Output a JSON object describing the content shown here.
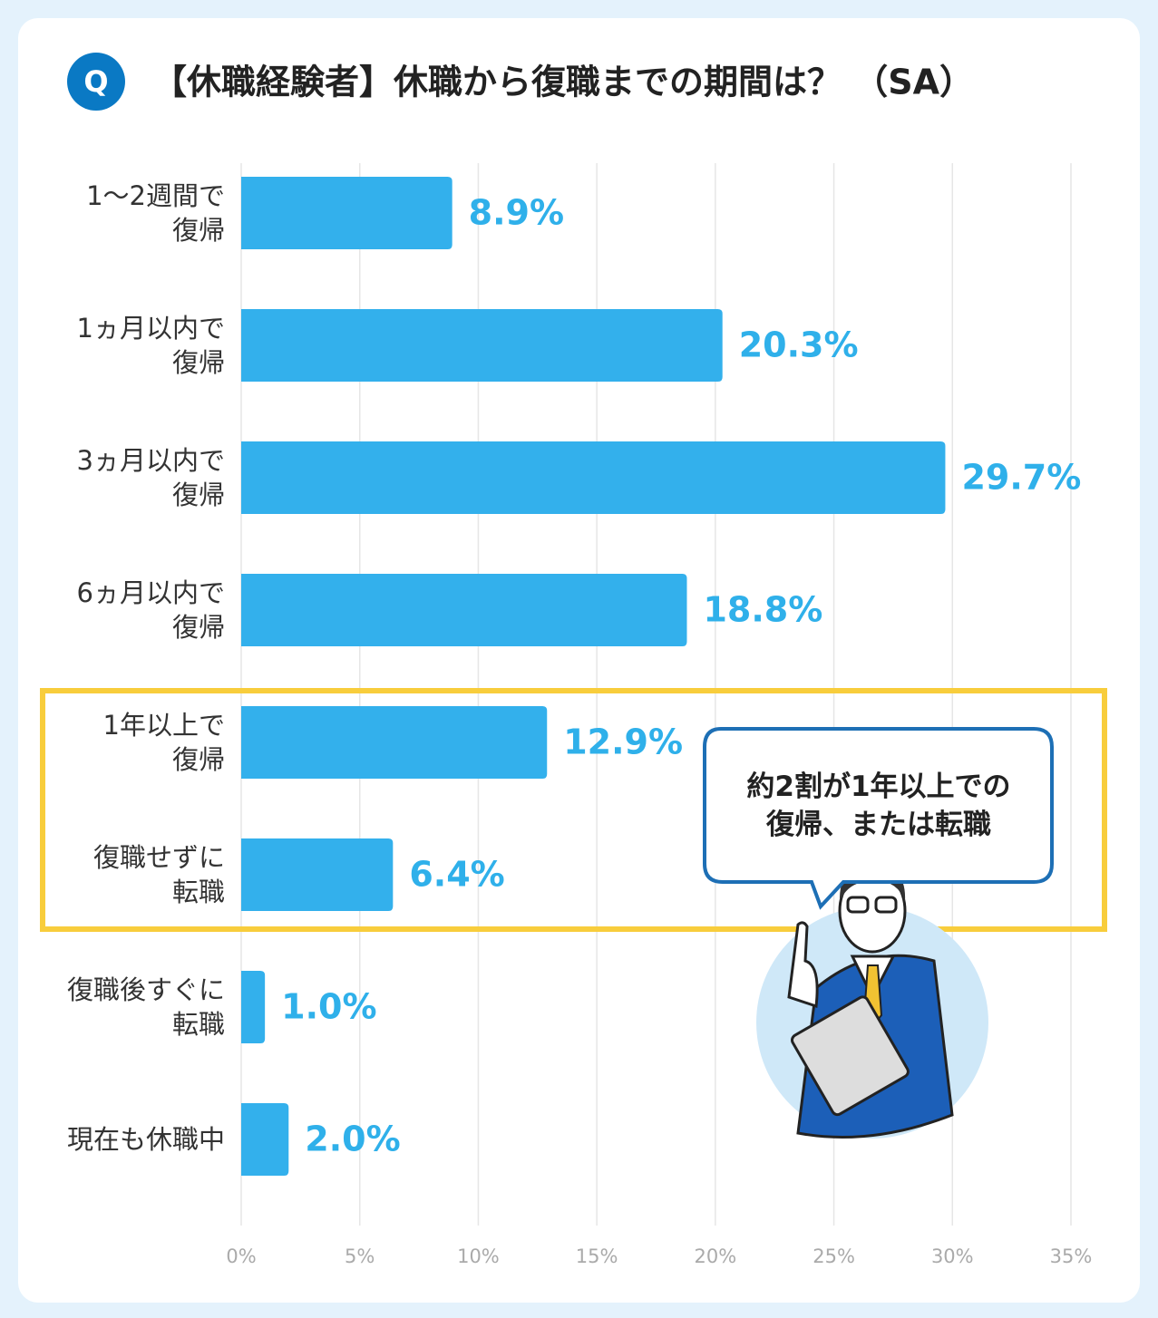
{
  "chart_data": {
    "type": "hbar",
    "badge": "Q",
    "title": "【休職経験者】休職から復職までの期間は？ （SA）",
    "categories": [
      "1〜2週間で\n復帰",
      "1ヵ月以内で\n復帰",
      "3ヵ月以内で\n復帰",
      "6ヵ月以内で\n復帰",
      "1年以上で\n復帰",
      "復職せずに\n転職",
      "復職後すぐに\n転職",
      "現在も休職中"
    ],
    "values": [
      8.9,
      20.3,
      29.7,
      18.8,
      12.9,
      6.4,
      1.0,
      2.0
    ],
    "value_labels": [
      "8.9%",
      "20.3%",
      "29.7%",
      "18.8%",
      "12.9%",
      "6.4%",
      "1.0%",
      "2.0%"
    ],
    "color": "#33b0ec",
    "xlim": [
      0,
      35
    ],
    "xticks": [
      {
        "value": 0,
        "label": "0%"
      },
      {
        "value": 5,
        "label": "5%"
      },
      {
        "value": 10,
        "label": "10%"
      },
      {
        "value": 15,
        "label": "15%"
      },
      {
        "value": 20,
        "label": "20%"
      },
      {
        "value": 25,
        "label": "25%"
      },
      {
        "value": 30,
        "label": "30%"
      },
      {
        "value": 35,
        "label": "35%"
      }
    ],
    "grid": true,
    "annotation": "約2割が1年以上での\n復帰、または転職"
  }
}
